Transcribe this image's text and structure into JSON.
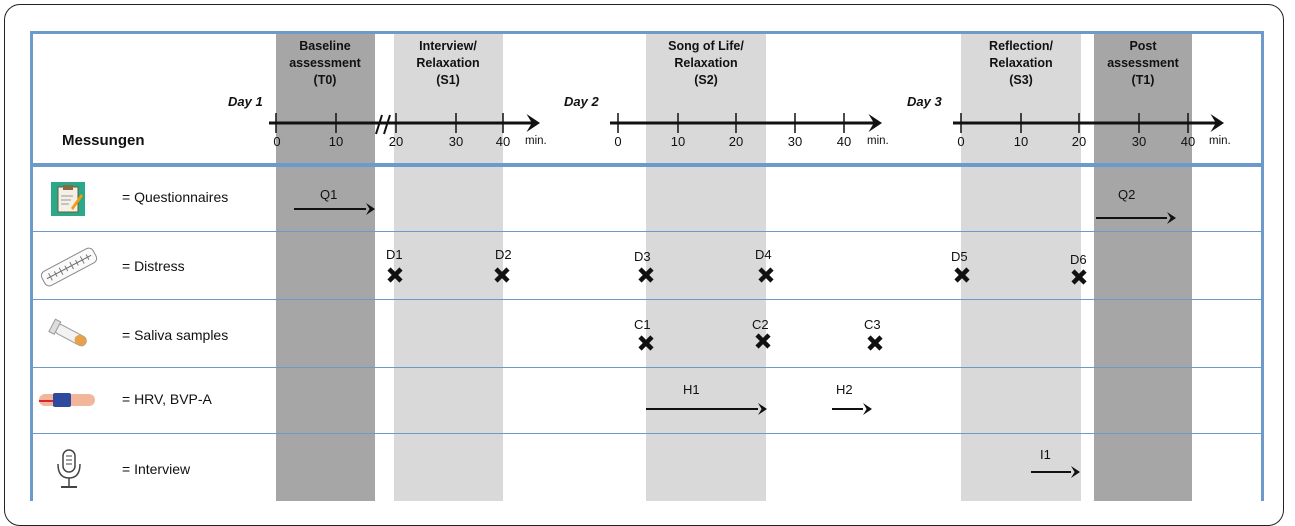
{
  "header": {
    "measures_label": "Messungen",
    "days": [
      "Day 1",
      "Day 2",
      "Day 3"
    ],
    "min_label": "min.",
    "tick_labels": [
      "0",
      "10",
      "20",
      "30",
      "40"
    ],
    "phases": [
      {
        "lines": [
          "Baseline",
          "assessment",
          "(T0)"
        ]
      },
      {
        "lines": [
          "Interview/",
          "Relaxation",
          "(S1)"
        ]
      },
      {
        "lines": [
          "Song of Life/",
          "Relaxation",
          "(S2)"
        ]
      },
      {
        "lines": [
          "Reflection/",
          "Relaxation",
          "(S3)"
        ]
      },
      {
        "lines": [
          "Post",
          "assessment",
          "(T1)"
        ]
      }
    ]
  },
  "rows": [
    {
      "label": "= Questionnaires",
      "icon": "clipboard-icon"
    },
    {
      "label": "= Distress",
      "icon": "thermometer-scale-icon"
    },
    {
      "label": "= Saliva samples",
      "icon": "test-tube-icon"
    },
    {
      "label": "= HRV, BVP-A",
      "icon": "finger-sensor-icon"
    },
    {
      "label": "= Interview",
      "icon": "microphone-icon"
    }
  ],
  "markers": {
    "arrows": [
      "Q1",
      "Q2",
      "H1",
      "H2",
      "I1"
    ],
    "crosses": [
      "D1",
      "D2",
      "D3",
      "D4",
      "D5",
      "D6",
      "C1",
      "C2",
      "C3"
    ]
  },
  "colors": {
    "frame_blue": "#6d9acb",
    "dark_band": "#a6a6a6",
    "light_band": "#d9d9d9"
  }
}
